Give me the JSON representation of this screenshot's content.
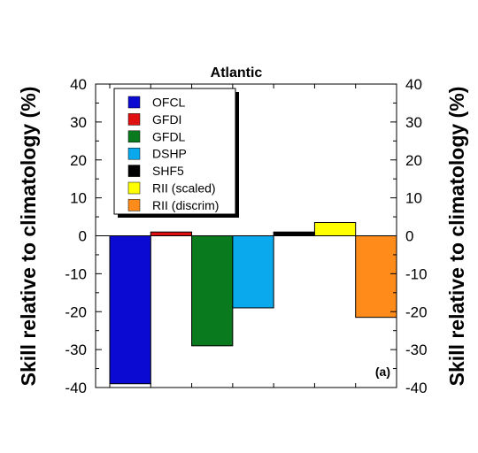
{
  "chart_data": {
    "type": "bar",
    "title": "Atlantic",
    "ylabel_left": "Skill relative to climatology (%)",
    "ylabel_right": "Skill relative to climatology (%)",
    "panel_label": "(a)",
    "ylim": [
      -40,
      40
    ],
    "yticks": [
      40,
      30,
      20,
      10,
      0,
      -10,
      -20,
      -30,
      -40
    ],
    "series": [
      {
        "name": "OFCL",
        "value": -39,
        "color": "#0a0ad2"
      },
      {
        "name": "GFDI",
        "value": 1,
        "color": "#e01010"
      },
      {
        "name": "GFDL",
        "value": -29,
        "color": "#0a7a1e"
      },
      {
        "name": "DSHP",
        "value": -19,
        "color": "#0aa8ec"
      },
      {
        "name": "SHF5",
        "value": 1,
        "color": "#000000"
      },
      {
        "name": "RII (scaled)",
        "value": 3.5,
        "color": "#ffff00"
      },
      {
        "name": "RII (discrim)",
        "value": -21.5,
        "color": "#ff8c1a"
      }
    ],
    "legend_position": "top-left",
    "grid": false
  }
}
